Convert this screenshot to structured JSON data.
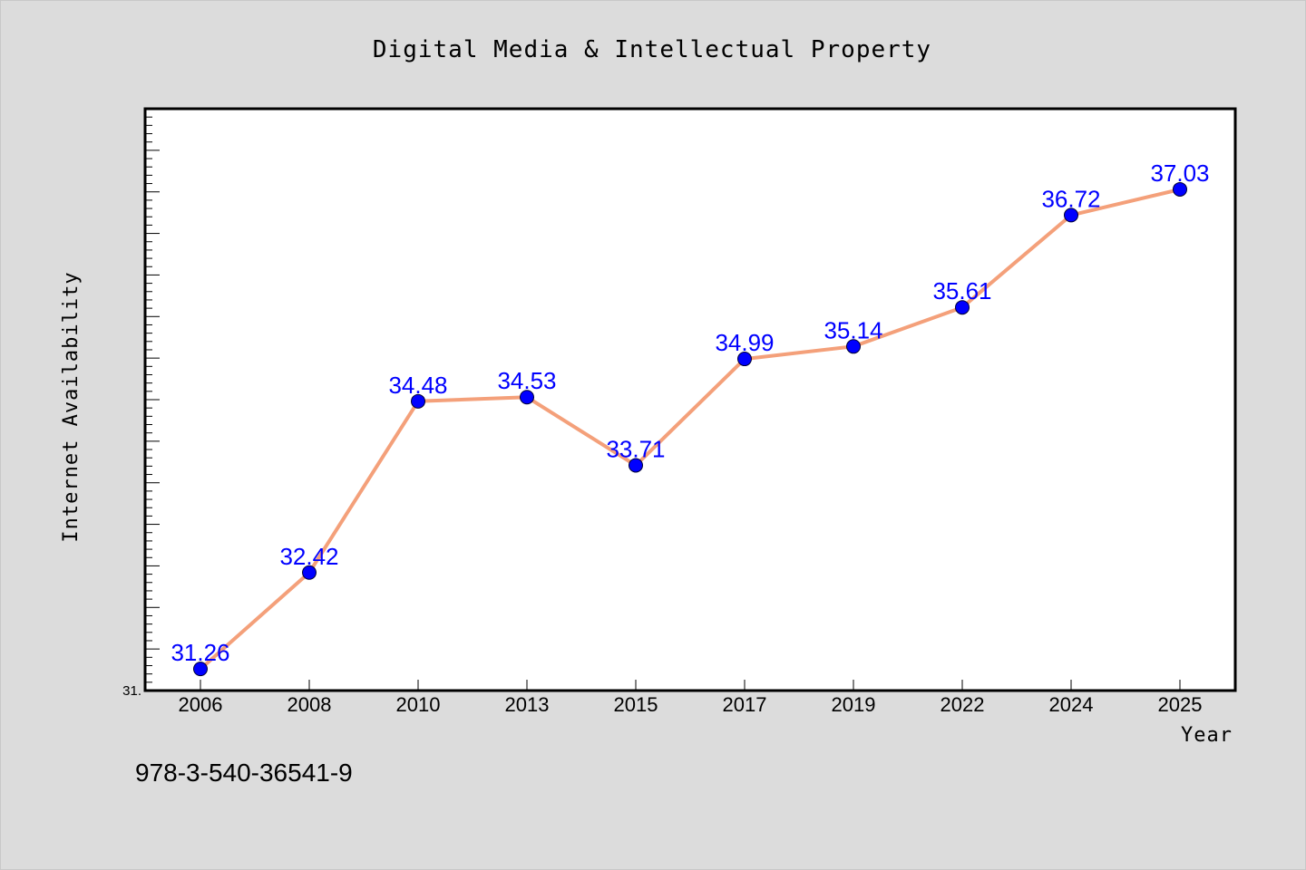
{
  "chart_data": {
    "type": "line",
    "title": "Digital Media & Intellectual Property",
    "xlabel": "Year",
    "ylabel": "Internet Availability",
    "categories": [
      "2006",
      "2008",
      "2010",
      "2013",
      "2015",
      "2017",
      "2019",
      "2022",
      "2024",
      "2025"
    ],
    "series": [
      {
        "values": [
          31.26,
          32.42,
          34.48,
          34.53,
          33.71,
          34.99,
          35.14,
          35.61,
          36.72,
          37.03
        ]
      }
    ],
    "ylim": [
      31.0,
      38.0
    ],
    "ytick_labels": [
      {
        "value": 31.0,
        "label": "31."
      }
    ],
    "y_minor_step": 0.1,
    "y_major_step": 0.5,
    "grid": false,
    "legend": "none",
    "colors": {
      "line": "#f4a07a",
      "marker": "#0000ff",
      "data_label": "#0000ff",
      "plot_background": "#ffffff",
      "page_background": "#dcdcdc"
    }
  },
  "footer": {
    "isbn": "978-3-540-36541-9"
  }
}
